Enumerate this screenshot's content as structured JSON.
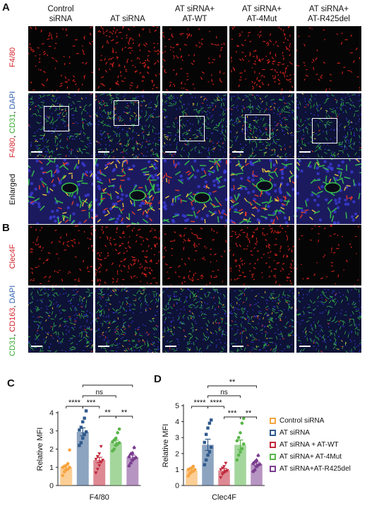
{
  "panels": {
    "A": "A",
    "B": "B",
    "C": "C",
    "D": "D"
  },
  "columns": [
    {
      "line1": "Control",
      "line2": "siRNA"
    },
    {
      "line1": "AT siRNA",
      "line2": ""
    },
    {
      "line1": "AT siRNA+",
      "line2": "AT-WT"
    },
    {
      "line1": "AT siRNA+",
      "line2": "AT-4Mut"
    },
    {
      "line1": "AT siRNA+",
      "line2": "AT-R425del"
    }
  ],
  "row_labels": {
    "f480": "F4/80",
    "merge_a": [
      {
        "text": "F4/80",
        "color": "#d2232a"
      },
      {
        "text": ", ",
        "color": "#111111"
      },
      {
        "text": "CD31",
        "color": "#3aaa35"
      },
      {
        "text": ", ",
        "color": "#111111"
      },
      {
        "text": "DAPI",
        "color": "#2e5fb0"
      }
    ],
    "enlarged": "Enlarged",
    "clec4f": "Clec4F",
    "merge_b": [
      {
        "text": "CD31",
        "color": "#3aaa35"
      },
      {
        "text": ", ",
        "color": "#111111"
      },
      {
        "text": "CD163",
        "color": "#d2232a"
      },
      {
        "text": ", ",
        "color": "#111111"
      },
      {
        "text": "DAPI",
        "color": "#2e5fb0"
      }
    ]
  },
  "legend": [
    {
      "label": "Control siRNA",
      "color": "#f7a540"
    },
    {
      "label": "AT siRNA",
      "color": "#2f5a8c"
    },
    {
      "label": "AT siRNA + AT-WT",
      "color": "#c1283a"
    },
    {
      "label": "AT siRNA+ AT-4Mut",
      "color": "#5ab54a"
    },
    {
      "label": "AT siRNA+AT-R425del",
      "color": "#7b3e8f"
    }
  ],
  "chart_data": [
    {
      "panel": "C",
      "type": "bar",
      "categories": [
        "Control siRNA",
        "AT siRNA",
        "AT siRNA + AT-WT",
        "AT siRNA+ AT-4Mut",
        "AT siRNA+AT-R425del"
      ],
      "values": [
        1.0,
        2.95,
        1.4,
        2.35,
        1.55
      ],
      "errors": [
        0.12,
        0.22,
        0.15,
        0.14,
        0.12
      ],
      "points": [
        [
          0.55,
          0.75,
          0.85,
          0.9,
          1.0,
          1.0,
          1.05,
          1.1,
          1.2,
          1.95
        ],
        [
          2.2,
          2.35,
          2.6,
          2.8,
          2.95,
          3.05,
          3.2,
          3.5,
          3.7,
          4.1
        ],
        [
          0.7,
          0.9,
          1.1,
          1.3,
          1.4,
          1.45,
          1.6,
          1.75,
          2.15
        ],
        [
          1.9,
          2.0,
          2.2,
          2.3,
          2.35,
          2.4,
          2.5,
          2.6,
          2.9,
          3.1
        ],
        [
          1.1,
          1.25,
          1.4,
          1.5,
          1.55,
          1.6,
          1.75,
          1.8,
          2.1
        ]
      ],
      "xlabel": "F4/80",
      "ylabel": "Relative MFI",
      "ylim": [
        0,
        4
      ],
      "yticks": [
        "0",
        "1",
        "2",
        "3",
        "4"
      ],
      "comparisons": [
        {
          "from": 0,
          "to": 1,
          "label": "****"
        },
        {
          "from": 1,
          "to": 2,
          "label": "***"
        },
        {
          "from": 1,
          "to": 3,
          "label": "ns"
        },
        {
          "from": 2,
          "to": 3,
          "label": "**"
        },
        {
          "from": 3,
          "to": 4,
          "label": "**"
        },
        {
          "from": 1,
          "to": 4,
          "label": "**"
        }
      ]
    },
    {
      "panel": "D",
      "type": "bar",
      "categories": [
        "Control siRNA",
        "AT siRNA",
        "AT siRNA + AT-WT",
        "AT siRNA+ AT-4Mut",
        "AT siRNA+AT-R425del"
      ],
      "values": [
        0.95,
        2.55,
        0.95,
        2.55,
        1.35
      ],
      "errors": [
        0.1,
        0.35,
        0.12,
        0.3,
        0.12
      ],
      "points": [
        [
          0.6,
          0.75,
          0.85,
          0.9,
          1.0,
          1.0,
          1.05,
          1.1,
          1.2
        ],
        [
          1.3,
          1.6,
          1.9,
          2.1,
          2.4,
          2.7,
          3.2,
          3.6,
          3.9,
          4.1
        ],
        [
          0.5,
          0.7,
          0.8,
          0.9,
          0.95,
          1.0,
          1.1,
          1.2,
          1.4
        ],
        [
          1.6,
          1.9,
          2.1,
          2.3,
          2.6,
          2.8,
          3.0,
          3.3,
          3.9,
          4.2
        ],
        [
          0.9,
          1.0,
          1.2,
          1.3,
          1.35,
          1.4,
          1.5,
          1.6,
          1.9
        ]
      ],
      "xlabel": "Clec4F",
      "ylabel": "Relative MFI",
      "ylim": [
        0,
        5
      ],
      "yticks": [
        "0",
        "1",
        "2",
        "3",
        "4",
        "5"
      ],
      "comparisons": [
        {
          "from": 0,
          "to": 1,
          "label": "****"
        },
        {
          "from": 1,
          "to": 2,
          "label": "****"
        },
        {
          "from": 1,
          "to": 3,
          "label": "ns"
        },
        {
          "from": 2,
          "to": 3,
          "label": "***"
        },
        {
          "from": 3,
          "to": 4,
          "label": "**"
        },
        {
          "from": 1,
          "to": 4,
          "label": "**"
        }
      ]
    }
  ]
}
